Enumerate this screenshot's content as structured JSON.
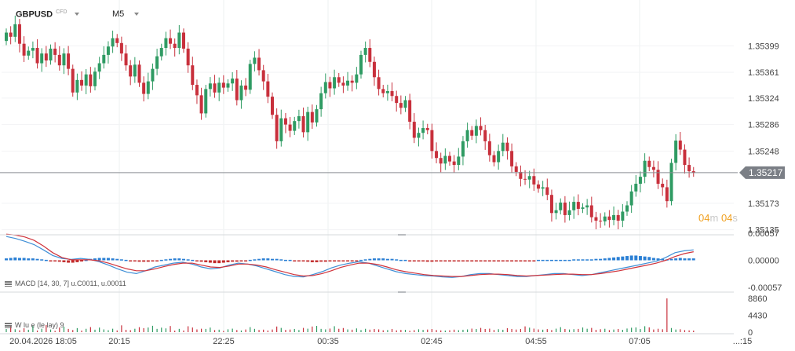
{
  "header": {
    "symbol": "GBPUSD",
    "instrument_type": "CFD",
    "timeframe": "M5"
  },
  "price_axis": {
    "labels": [
      "1.35399",
      "1.35361",
      "1.35324",
      "1.35286",
      "1.35248",
      "1.35173",
      "1.35135"
    ],
    "current_price": "1.35217",
    "colors": {
      "bull": "#2f9b63",
      "bear": "#c8303c",
      "badge": "#7b7f86"
    }
  },
  "countdown": {
    "minutes": "04",
    "minutes_unit": "m",
    "seconds": "04",
    "seconds_unit": "s"
  },
  "macd": {
    "label": "MACD [14, 30, 7] u.C0011, u.00011",
    "axis_labels": [
      "0.00057",
      "0.00000",
      "-0.00057"
    ],
    "colors": {
      "macd_line": "#3f8fd6",
      "signal_line": "#d0333b",
      "hist_pos": "#2a7fd4",
      "hist_neg": "#c12a2a"
    }
  },
  "volume": {
    "label": "W lu e (le lay) 9",
    "axis_labels": [
      "8860",
      "4430",
      "0"
    ]
  },
  "time_axis": {
    "labels": [
      "20.04.2026 18:05",
      "20:15",
      "22:25",
      "00:35",
      "02:45",
      "04:55",
      "07:05",
      "...:15"
    ]
  },
  "chart_data": {
    "type": "candlestick",
    "symbol": "GBPUSD",
    "timeframe": "M5",
    "price_ticks": [
      1.35399,
      1.35361,
      1.35324,
      1.35286,
      1.35248,
      1.35173,
      1.35135
    ],
    "current_price": 1.35217,
    "price_range": [
      1.3513,
      1.3544
    ],
    "closes": [
      1.35418,
      1.35412,
      1.3543,
      1.35402,
      1.35385,
      1.35392,
      1.35396,
      1.35374,
      1.35388,
      1.35378,
      1.35395,
      1.35386,
      1.35371,
      1.35388,
      1.35366,
      1.35332,
      1.3535,
      1.35342,
      1.35358,
      1.35341,
      1.35362,
      1.35374,
      1.35386,
      1.35398,
      1.3541,
      1.35403,
      1.35388,
      1.35371,
      1.35355,
      1.35372,
      1.35346,
      1.3533,
      1.35348,
      1.35366,
      1.35384,
      1.35396,
      1.3541,
      1.35402,
      1.35396,
      1.35418,
      1.35395,
      1.35371,
      1.35343,
      1.35328,
      1.35302,
      1.35337,
      1.35345,
      1.35332,
      1.35346,
      1.35339,
      1.35345,
      1.35352,
      1.35321,
      1.35342,
      1.35336,
      1.35373,
      1.35382,
      1.35364,
      1.35348,
      1.35326,
      1.353,
      1.35262,
      1.35295,
      1.35286,
      1.35277,
      1.35291,
      1.35298,
      1.35275,
      1.35304,
      1.35289,
      1.35308,
      1.35331,
      1.35347,
      1.35338,
      1.35354,
      1.35346,
      1.35342,
      1.35349,
      1.35346,
      1.35358,
      1.35386,
      1.35396,
      1.35376,
      1.35354,
      1.35337,
      1.35331,
      1.35334,
      1.35327,
      1.35317,
      1.3531,
      1.35321,
      1.3529,
      1.35267,
      1.35274,
      1.35281,
      1.35278,
      1.35248,
      1.35238,
      1.3523,
      1.35241,
      1.35233,
      1.35228,
      1.3524,
      1.35262,
      1.35278,
      1.3527,
      1.35284,
      1.35278,
      1.35262,
      1.35242,
      1.35232,
      1.35248,
      1.3526,
      1.35248,
      1.35226,
      1.35218,
      1.35208,
      1.35207,
      1.35212,
      1.352,
      1.35194,
      1.35196,
      1.35185,
      1.35159,
      1.35163,
      1.35174,
      1.35156,
      1.35163,
      1.35175,
      1.35165,
      1.35167,
      1.3517,
      1.35153,
      1.35148,
      1.35147,
      1.35154,
      1.35149,
      1.35156,
      1.35148,
      1.35161,
      1.3517,
      1.3519,
      1.35201,
      1.35211,
      1.35234,
      1.35225,
      1.35221,
      1.35201,
      1.35196,
      1.35176,
      1.35231,
      1.35263,
      1.3525,
      1.35228,
      1.35219,
      1.35217
    ],
    "macd_hist": [
      4e-05,
      5e-05,
      6e-05,
      5e-05,
      5e-05,
      4e-05,
      4e-05,
      3e-05,
      2e-05,
      1e-05,
      -1e-05,
      -2e-05,
      -3e-05,
      -4e-05,
      -5e-05,
      -5e-05,
      -4e-05,
      -2e-05,
      1e-05,
      3e-05,
      4e-05,
      5e-05,
      5e-05,
      5e-05,
      4e-05,
      3e-05,
      2e-05,
      1e-05,
      -1e-05,
      -2e-05,
      -3e-05,
      -3e-05,
      -3e-05,
      -2e-05,
      -1e-05,
      1e-05,
      2e-05,
      3e-05,
      4e-05,
      4e-05,
      3e-05,
      2e-05,
      1e-05,
      -1e-05,
      -3e-05,
      -4e-05,
      -5e-05,
      -6e-05,
      -6e-05,
      -5e-05,
      -4e-05,
      -3e-05,
      -3e-05,
      -2e-05,
      -1e-05,
      1e-05,
      2e-05,
      3e-05,
      4e-05,
      4e-05,
      3e-05,
      3e-05,
      2e-05,
      1e-05,
      1e-05,
      -1e-05,
      -1e-05,
      -2e-05,
      -3e-05,
      -4e-05,
      -4e-05,
      -3e-05,
      -3e-05,
      -2e-05,
      -2e-05,
      -1e-05,
      -2e-05,
      -2e-05,
      -1e-05,
      -1e-05,
      1e-05,
      2e-05,
      3e-05,
      4e-05,
      4e-05,
      4e-05,
      3e-05,
      3e-05,
      2e-05,
      1e-05,
      1e-05,
      -1e-05,
      -1e-05,
      -2e-05,
      -2e-05,
      -3e-05,
      -3e-05,
      -2e-05,
      -2e-05,
      -1e-05,
      -1e-05,
      -1e-05,
      -1e-05,
      -1e-05,
      -1e-05,
      -2e-05,
      -2e-05,
      -2e-05,
      -1e-05,
      -1e-05,
      -1e-05,
      -1e-05,
      -1e-05,
      -1e-05,
      -1e-05,
      -2e-05,
      -2e-05,
      -2e-05,
      -1e-05,
      -1e-05,
      1e-05,
      1e-05,
      1e-05,
      1e-05,
      1e-05,
      1e-05,
      1e-05,
      1e-05,
      2e-05,
      2e-05,
      2e-05,
      2e-05,
      2e-05,
      3e-05,
      3e-05,
      4e-05,
      5e-05,
      6e-05,
      7e-05,
      8e-05,
      9e-05,
      0.0001,
      0.0001,
      9e-05,
      8e-05,
      7e-05,
      5e-05,
      4e-05,
      3e-05,
      2e-05,
      3e-05,
      4e-05,
      5e-05,
      4e-05,
      4e-05,
      4e-05
    ],
    "macd_line": [
      0.0005,
      0.00046,
      0.0004,
      0.00033,
      0.00022,
      0.0001,
      4e-05,
      2e-05,
      4e-05,
      2e-05,
      -3e-05,
      -0.0001,
      -0.00018,
      -0.00025,
      -0.00028,
      -0.00022,
      -0.00014,
      -0.0001,
      -6e-05,
      -4e-05,
      -8e-05,
      -0.00014,
      -0.00018,
      -0.00016,
      -0.0001,
      -6e-05,
      -8e-05,
      -0.00012,
      -0.00018,
      -0.00024,
      -0.0003,
      -0.00034,
      -0.00035,
      -0.0003,
      -0.00024,
      -0.00016,
      -0.0001,
      -6e-05,
      -3e-05,
      -6e-05,
      -0.00012,
      -0.00018,
      -0.00024,
      -0.00028,
      -0.0003,
      -0.00032,
      -0.00033,
      -0.00035,
      -0.00036,
      -0.00034,
      -0.0003,
      -0.00028,
      -0.00028,
      -0.0003,
      -0.00032,
      -0.00034,
      -0.00034,
      -0.00032,
      -0.0003,
      -0.00028,
      -0.00028,
      -0.0003,
      -0.00032,
      -0.0003,
      -0.00026,
      -0.00022,
      -0.00018,
      -0.00014,
      -0.0001,
      -6e-05,
      -2e-05,
      6e-05,
      0.00016,
      0.0002,
      0.00022
    ],
    "signal_line": [
      0.00055,
      0.00053,
      0.00049,
      0.00042,
      0.0003,
      0.00016,
      6e-05,
      1e-05,
      1e-05,
      1e-05,
      -1e-05,
      -6e-05,
      -0.00012,
      -0.00018,
      -0.00022,
      -0.00022,
      -0.00018,
      -0.00013,
      -9e-05,
      -6e-05,
      -6e-05,
      -0.0001,
      -0.00014,
      -0.00015,
      -0.00012,
      -8e-05,
      -8e-05,
      -0.0001,
      -0.00014,
      -0.0002,
      -0.00025,
      -0.0003,
      -0.00033,
      -0.00032,
      -0.00028,
      -0.00022,
      -0.00015,
      -0.0001,
      -6e-05,
      -6e-05,
      -9e-05,
      -0.00014,
      -0.0002,
      -0.00024,
      -0.00027,
      -0.0003,
      -0.00032,
      -0.00033,
      -0.00034,
      -0.00034,
      -0.00032,
      -0.0003,
      -0.00029,
      -0.00029,
      -0.0003,
      -0.00032,
      -0.00033,
      -0.00032,
      -0.00031,
      -0.0003,
      -0.00029,
      -0.00029,
      -0.0003,
      -0.0003,
      -0.00028,
      -0.00025,
      -0.00022,
      -0.00018,
      -0.00014,
      -0.0001,
      -6e-05,
      0.0,
      8e-05,
      0.00014,
      0.00018
    ],
    "macd_range": [
      -0.00057,
      0.00057
    ],
    "volume": [
      820,
      1510,
      760,
      500,
      1020,
      630,
      1680,
      430,
      900,
      1880,
      690,
      350,
      1220,
      1440,
      850,
      560,
      1060,
      420,
      880,
      1330,
      650,
      1200,
      720,
      510,
      900,
      460,
      1790,
      620,
      530,
      890,
      1310,
      1060,
      1220,
      1670,
      860,
      1180,
      990,
      1610,
      410,
      860,
      440,
      1550,
      1220,
      720,
      900,
      850,
      1200,
      540,
      650,
      340,
      750,
      920,
      560,
      440,
      700,
      1320,
      860,
      580,
      660,
      440,
      700,
      1480,
      1110,
      590,
      690,
      840,
      560,
      1110,
      910,
      1480,
      1640,
      860,
      730,
      940,
      1560,
      880,
      1080,
      720,
      650,
      980,
      560,
      880,
      660,
      810,
      730,
      500,
      560,
      840,
      470,
      590,
      620,
      380,
      530,
      750,
      600,
      690,
      820,
      560,
      470,
      430,
      510,
      660,
      520,
      630,
      720,
      930,
      820,
      1110,
      840,
      920,
      580,
      770,
      630,
      1040,
      840,
      690,
      830,
      1520,
      1180,
      930,
      720,
      650,
      800,
      560,
      920,
      1310,
      840,
      690,
      780,
      850,
      1220,
      890,
      1110,
      610,
      770,
      890,
      540,
      690,
      830,
      620,
      950,
      1160,
      1240,
      810,
      1560,
      1260,
      700,
      890,
      760,
      8860,
      1080,
      690,
      760,
      540,
      470,
      420
    ],
    "volume_range": [
      0,
      8860
    ],
    "time_labels": [
      "20.04.2026 18:05",
      "20:15",
      "22:25",
      "00:35",
      "02:45",
      "04:55",
      "07:05",
      "...:15"
    ]
  }
}
